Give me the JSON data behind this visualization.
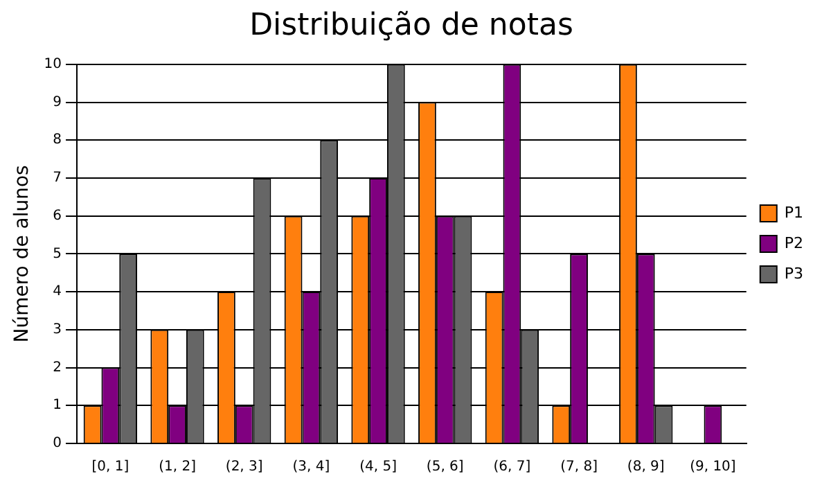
{
  "chart_data": {
    "type": "bar",
    "title": "Distribuição de notas",
    "ylabel": "Número de alunos",
    "categories": [
      "[0, 1]",
      "(1, 2]",
      "(2, 3]",
      "(3, 4]",
      "(4, 5]",
      "(5, 6]",
      "(6, 7]",
      "(7, 8]",
      "(8, 9]",
      "(9, 10]"
    ],
    "series": [
      {
        "name": "P1",
        "color": "#ff7f0e",
        "values": [
          1,
          3,
          4,
          6,
          6,
          9,
          4,
          1,
          10,
          0
        ]
      },
      {
        "name": "P2",
        "color": "#800080",
        "values": [
          2,
          1,
          1,
          4,
          7,
          6,
          10,
          5,
          5,
          1
        ]
      },
      {
        "name": "P3",
        "color": "#666666",
        "values": [
          5,
          3,
          7,
          8,
          10,
          6,
          3,
          0,
          1,
          0
        ]
      }
    ],
    "ylim": [
      0,
      10
    ],
    "yticks": [
      0,
      1,
      2,
      3,
      4,
      5,
      6,
      7,
      8,
      9,
      10
    ],
    "grid": "y",
    "legend": "right"
  }
}
